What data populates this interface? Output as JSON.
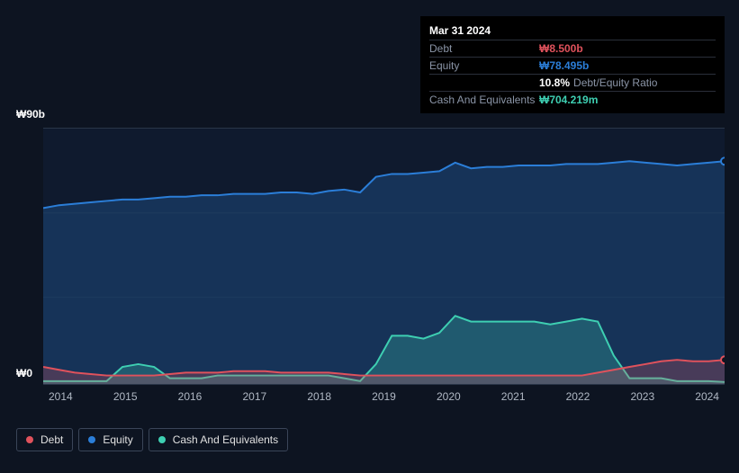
{
  "chart": {
    "type": "area",
    "background_color": "#0d1421",
    "plot_background_color": "#0f1a2e",
    "grid_color": "#1a2436",
    "y_axis": {
      "max_label": "₩90b",
      "zero_label": "₩0",
      "ymax": 90,
      "ymin": 0
    },
    "x_axis": {
      "labels": [
        "2014",
        "2015",
        "2016",
        "2017",
        "2018",
        "2019",
        "2020",
        "2021",
        "2022",
        "2023",
        "2024"
      ]
    },
    "series": {
      "equity": {
        "label": "Equity",
        "color": "#2b7ed8",
        "fill_opacity": 0.25,
        "values": [
          62,
          63,
          63.5,
          64,
          64.5,
          65,
          65,
          65.5,
          66,
          66,
          66.5,
          66.5,
          67,
          67,
          67,
          67.5,
          67.5,
          67,
          68,
          68.5,
          67.5,
          73,
          74,
          74,
          74.5,
          75,
          78,
          76,
          76.5,
          76.5,
          77,
          77,
          77,
          77.5,
          77.5,
          77.5,
          78,
          78.5,
          78,
          77.5,
          77,
          77.5,
          78,
          78.5
        ]
      },
      "debt": {
        "label": "Debt",
        "color": "#e0525c",
        "fill_opacity": 0.25,
        "values": [
          6,
          5,
          4,
          3.5,
          3,
          3,
          3,
          3,
          3.5,
          4,
          4,
          4,
          4.5,
          4.5,
          4.5,
          4,
          4,
          4,
          4,
          3.5,
          3,
          3,
          3,
          3,
          3,
          3,
          3,
          3,
          3,
          3,
          3,
          3,
          3,
          3,
          3,
          4,
          5,
          6,
          7,
          8,
          8.5,
          8,
          8,
          8.5
        ]
      },
      "cash": {
        "label": "Cash And Equivalents",
        "color": "#3ecfb2",
        "fill_opacity": 0.25,
        "values": [
          1,
          1,
          1,
          1,
          1,
          6,
          7,
          6,
          2,
          2,
          2,
          3,
          3,
          3,
          3,
          3,
          3,
          3,
          3,
          2,
          1,
          7,
          17,
          17,
          16,
          18,
          24,
          22,
          22,
          22,
          22,
          22,
          21,
          22,
          23,
          22,
          10,
          2,
          2,
          2,
          1,
          1,
          1,
          0.7
        ]
      }
    }
  },
  "tooltip": {
    "date": "Mar 31 2024",
    "rows": [
      {
        "label": "Debt",
        "value": "₩8.500b",
        "color": "#e0525c"
      },
      {
        "label": "Equity",
        "value": "₩78.495b",
        "color": "#2b7ed8"
      },
      {
        "label": "",
        "value": "10.8%",
        "suffix": "Debt/Equity Ratio",
        "color": "#ffffff"
      },
      {
        "label": "Cash And Equivalents",
        "value": "₩704.219m",
        "color": "#3ecfb2"
      }
    ]
  },
  "legend": [
    {
      "label": "Debt",
      "color": "#e0525c"
    },
    {
      "label": "Equity",
      "color": "#2b7ed8"
    },
    {
      "label": "Cash And Equivalents",
      "color": "#3ecfb2"
    }
  ]
}
